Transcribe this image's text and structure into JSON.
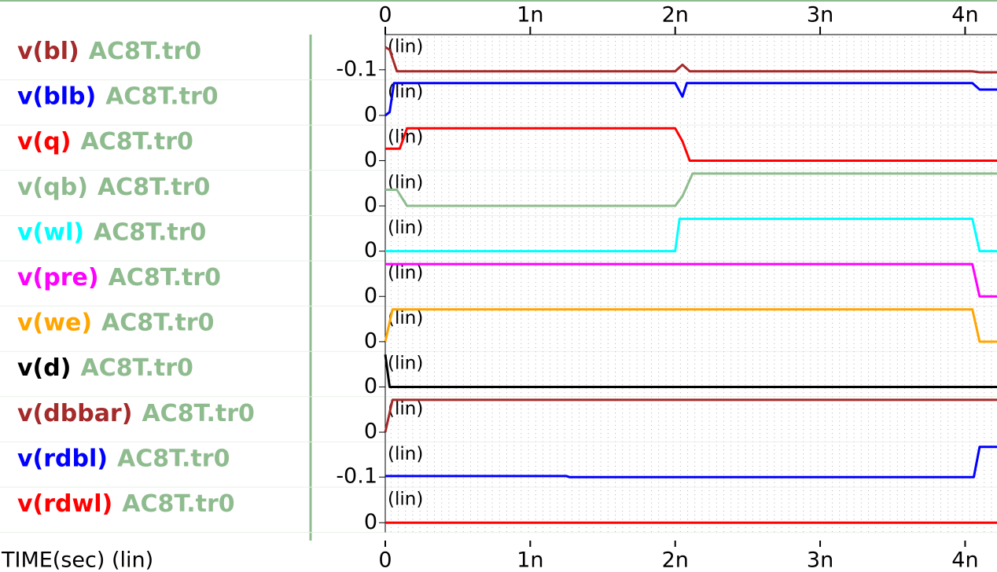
{
  "x_axis": {
    "label": "TIME(sec) (lin)",
    "xlim": [
      0,
      4.22e-09
    ],
    "xticks": [
      0,
      {
        "value": 1e-09,
        "label": "1n"
      },
      {
        "value": 2e-09,
        "label": "2n"
      },
      {
        "value": 3e-09,
        "label": "3n"
      },
      {
        "value": 4e-09,
        "label": "4n"
      }
    ]
  },
  "chart_data": [
    {
      "type": "line",
      "file": "AC8T.tr0",
      "ylabel": "(lin)",
      "ylim": [
        -0.12,
        -0.03
      ],
      "yticks": [
        -0.1
      ],
      "grid": true,
      "series": [
        {
          "name": "v(bl)",
          "color": "#a52a2a",
          "x": [
            0,
            3e-11,
            8e-11,
            2e-09,
            2.05e-09,
            2.1e-09,
            4.05e-09,
            4.1e-09,
            4.22e-09
          ],
          "values": [
            -0.055,
            -0.06,
            -0.103,
            -0.103,
            -0.09,
            -0.103,
            -0.103,
            -0.105,
            -0.105
          ]
        }
      ]
    },
    {
      "type": "line",
      "file": "AC8T.tr0",
      "ylabel": "(lin)",
      "ylim": [
        -0.3,
        1.1
      ],
      "yticks": [
        0
      ],
      "grid": true,
      "series": [
        {
          "name": "v(blb)",
          "color": "#0000ff",
          "x": [
            0,
            3e-11,
            6e-11,
            2e-09,
            2.05e-09,
            2.08e-09,
            4.05e-09,
            4.1e-09,
            4.22e-09
          ],
          "values": [
            0,
            0.1,
            1.0,
            1.0,
            0.58,
            1.0,
            1.0,
            0.8,
            0.8
          ]
        }
      ]
    },
    {
      "type": "line",
      "file": "AC8T.tr0",
      "ylabel": "(lin)",
      "ylim": [
        -0.3,
        1.1
      ],
      "yticks": [
        0
      ],
      "grid": true,
      "series": [
        {
          "name": "v(q)",
          "color": "#ff0000",
          "x": [
            0,
            1e-10,
            1.5e-10,
            2e-09,
            2.05e-09,
            2.1e-09,
            4.22e-09
          ],
          "values": [
            0.37,
            0.37,
            1.0,
            1.0,
            0.6,
            0,
            0
          ]
        }
      ]
    },
    {
      "type": "line",
      "file": "AC8T.tr0",
      "ylabel": "(lin)",
      "ylim": [
        -0.3,
        1.1
      ],
      "yticks": [
        0
      ],
      "grid": true,
      "series": [
        {
          "name": "v(qb)",
          "color": "#8fbc8f",
          "x": [
            0,
            8e-11,
            1.5e-10,
            2e-09,
            2.05e-09,
            2.12e-09,
            4.22e-09
          ],
          "values": [
            0.5,
            0.5,
            0,
            0,
            0.3,
            1.0,
            1.0
          ]
        }
      ]
    },
    {
      "type": "line",
      "file": "AC8T.tr0",
      "ylabel": "(lin)",
      "ylim": [
        -0.3,
        1.1
      ],
      "yticks": [
        0
      ],
      "grid": true,
      "series": [
        {
          "name": "v(wl)",
          "color": "#00ffff",
          "x": [
            0,
            2e-09,
            2.03e-09,
            4.05e-09,
            4.1e-09,
            4.22e-09
          ],
          "values": [
            0,
            0,
            1,
            1,
            0,
            0
          ]
        }
      ]
    },
    {
      "type": "line",
      "file": "AC8T.tr0",
      "ylabel": "(lin)",
      "ylim": [
        -0.3,
        1.1
      ],
      "yticks": [
        0
      ],
      "grid": true,
      "series": [
        {
          "name": "v(pre)",
          "color": "#ff00ff",
          "x": [
            0,
            4.05e-09,
            4.1e-09,
            4.22e-09
          ],
          "values": [
            1,
            1,
            0,
            0
          ]
        }
      ]
    },
    {
      "type": "line",
      "file": "AC8T.tr0",
      "ylabel": "(lin)",
      "ylim": [
        -0.3,
        1.1
      ],
      "yticks": [
        0
      ],
      "grid": true,
      "series": [
        {
          "name": "v(we)",
          "color": "#ffa500",
          "x": [
            0,
            5e-11,
            4.05e-09,
            4.1e-09,
            4.22e-09
          ],
          "values": [
            0,
            1,
            1,
            0,
            0
          ]
        }
      ]
    },
    {
      "type": "line",
      "file": "AC8T.tr0",
      "ylabel": "(lin)",
      "ylim": [
        -0.3,
        1.1
      ],
      "yticks": [
        0
      ],
      "grid": true,
      "series": [
        {
          "name": "v(d)",
          "color": "#000000",
          "x": [
            0,
            3e-11,
            4.22e-09
          ],
          "values": [
            1,
            0,
            0
          ]
        }
      ]
    },
    {
      "type": "line",
      "file": "AC8T.tr0",
      "ylabel": "(lin)",
      "ylim": [
        -0.3,
        1.1
      ],
      "yticks": [
        0
      ],
      "grid": true,
      "series": [
        {
          "name": "v(dbbar)",
          "color": "#a52a2a",
          "x": [
            0,
            5e-11,
            4.22e-09
          ],
          "values": [
            0,
            1,
            1
          ]
        }
      ]
    },
    {
      "type": "line",
      "file": "AC8T.tr0",
      "ylabel": "(lin)",
      "ylim": [
        -0.12,
        -0.03
      ],
      "yticks": [
        -0.1
      ],
      "grid": true,
      "series": [
        {
          "name": "v(rdbl)",
          "color": "#0000ff",
          "x": [
            0,
            1.25e-09,
            1.27e-09,
            4.06e-09,
            4.1e-09,
            4.22e-09
          ],
          "values": [
            -0.098,
            -0.098,
            -0.1,
            -0.1,
            -0.04,
            -0.04
          ]
        }
      ]
    },
    {
      "type": "line",
      "file": "AC8T.tr0",
      "ylabel": "(lin)",
      "ylim": [
        -0.3,
        1.1
      ],
      "yticks": [
        0
      ],
      "grid": true,
      "series": [
        {
          "name": "v(rdwl)",
          "color": "#ff0000",
          "x": [
            0,
            4.22e-09
          ],
          "values": [
            0,
            0
          ]
        }
      ]
    }
  ]
}
